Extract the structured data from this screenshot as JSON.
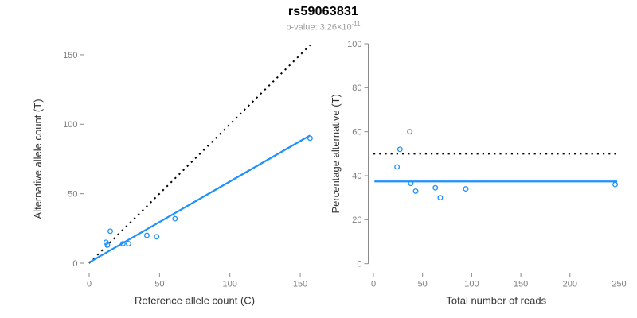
{
  "header": {
    "title": "rs59063831",
    "subtitle_prefix": "p-value: 3.26×10",
    "subtitle_exponent": "-11"
  },
  "colors": {
    "accent_blue": "#1E90FF",
    "dotted_line_black": "#000000",
    "axis_line_gray": "#8a8a8a",
    "tick_label_gray": "#7e7e7e",
    "axis_title_color": "#333333",
    "subtitle_gray": "#9c9c9c",
    "title_black": "#000000"
  },
  "chart_data": [
    {
      "name": "allele-counts-scatter",
      "type": "scatter",
      "title": "",
      "xlabel": "Reference allele count (C)",
      "ylabel": "Alternative allele count (T)",
      "xlim": [
        0,
        157
      ],
      "ylim": [
        0,
        157
      ],
      "xticks": [
        0,
        50,
        100,
        150
      ],
      "yticks": [
        0,
        50,
        100,
        150
      ],
      "grid": false,
      "legend": false,
      "points": [
        [
          15,
          23
        ],
        [
          12,
          15
        ],
        [
          13,
          13
        ],
        [
          24,
          14
        ],
        [
          28,
          14
        ],
        [
          41,
          20
        ],
        [
          48,
          19
        ],
        [
          61,
          32
        ],
        [
          157,
          90
        ]
      ],
      "lines": [
        {
          "name": "identity-line",
          "style": "dotted",
          "color": "#000000",
          "from": [
            0,
            0
          ],
          "to": [
            157,
            157
          ]
        },
        {
          "name": "fit-line",
          "style": "solid",
          "color": "#1E90FF",
          "from": [
            0,
            0.5
          ],
          "to": [
            157,
            92
          ]
        }
      ]
    },
    {
      "name": "percentage-alternative-scatter",
      "type": "scatter",
      "title": "",
      "xlabel": "Total number of reads",
      "ylabel": "Percentage alternative (T)",
      "xlim": [
        0,
        250
      ],
      "ylim": [
        0,
        100
      ],
      "xticks": [
        0,
        50,
        100,
        150,
        200,
        250
      ],
      "yticks": [
        0,
        20,
        40,
        60,
        80,
        100
      ],
      "grid": false,
      "legend": false,
      "points": [
        [
          37,
          60
        ],
        [
          27,
          52
        ],
        [
          24,
          44
        ],
        [
          38,
          36.5
        ],
        [
          43,
          33
        ],
        [
          63,
          34.5
        ],
        [
          68,
          30
        ],
        [
          94,
          34
        ],
        [
          246,
          36
        ]
      ],
      "lines": [
        {
          "name": "expected-line",
          "style": "dotted",
          "color": "#000000",
          "from": [
            0,
            50
          ],
          "to": [
            250,
            50
          ]
        },
        {
          "name": "fit-line",
          "style": "solid",
          "color": "#1E90FF",
          "from": [
            1,
            37.4
          ],
          "to": [
            248,
            37.4
          ]
        }
      ]
    }
  ]
}
